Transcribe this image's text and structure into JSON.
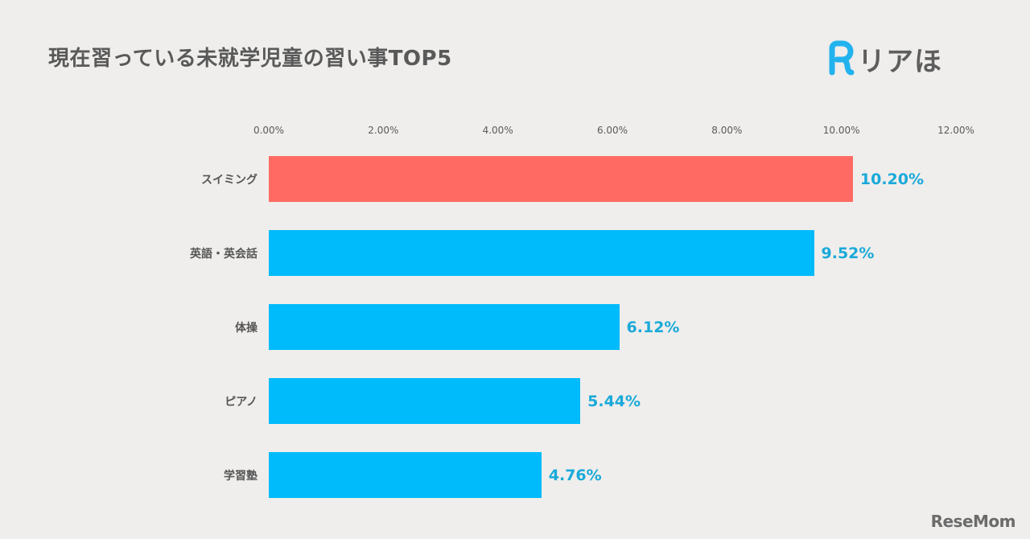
{
  "header": {
    "title": "現在習っている未就学児童の習い事TOP5",
    "logo_text": "リアほ",
    "logo_icon": "r-letter-icon"
  },
  "footer": {
    "watermark": "ReseMom"
  },
  "colors": {
    "background": "#efeeec",
    "highlight_bar": "#ff6b63",
    "bar": "#00bbfb",
    "value_label": "#1aa9d9",
    "logo_accent": "#22b3ee"
  },
  "chart_data": {
    "type": "bar",
    "orientation": "horizontal",
    "title": "現在習っている未就学児童の習い事TOP5",
    "xlabel": "",
    "ylabel": "",
    "xlim": [
      0,
      12
    ],
    "x_ticks": [
      "0.00%",
      "2.00%",
      "4.00%",
      "6.00%",
      "8.00%",
      "10.00%",
      "12.00%"
    ],
    "x_axis_position": "top",
    "grid": false,
    "legend": null,
    "categories": [
      "スイミング",
      "英語・英会話",
      "体操",
      "ピアノ",
      "学習塾"
    ],
    "values": [
      10.2,
      9.52,
      6.12,
      5.44,
      4.76
    ],
    "value_labels": [
      "10.20%",
      "9.52%",
      "6.12%",
      "5.44%",
      "4.76%"
    ],
    "bar_colors": [
      "#ff6b63",
      "#00bbfb",
      "#00bbfb",
      "#00bbfb",
      "#00bbfb"
    ]
  }
}
